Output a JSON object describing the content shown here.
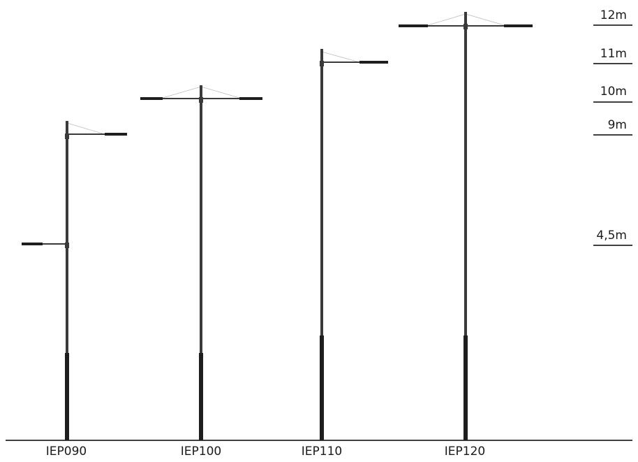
{
  "heights": [
    {
      "label": "12m",
      "value_m": 12
    },
    {
      "label": "11m",
      "value_m": 11
    },
    {
      "label": "10m",
      "value_m": 10
    },
    {
      "label": "9m",
      "value_m": 9
    },
    {
      "label": "4,5m",
      "value_m": 4.5
    }
  ],
  "poles": [
    {
      "name": "IEP090",
      "height_m": 9,
      "arms": "single-right",
      "extra_arm_m": 4.5
    },
    {
      "name": "IEP100",
      "height_m": 10,
      "arms": "double"
    },
    {
      "name": "IEP110",
      "height_m": 11,
      "arms": "single-right"
    },
    {
      "name": "IEP120",
      "height_m": 12,
      "arms": "double"
    }
  ],
  "colors": {
    "pole": "#3a3a3a",
    "pole_base": "#1e1e1e",
    "line": "#000000",
    "stay_wire": "#b8b8b8"
  }
}
